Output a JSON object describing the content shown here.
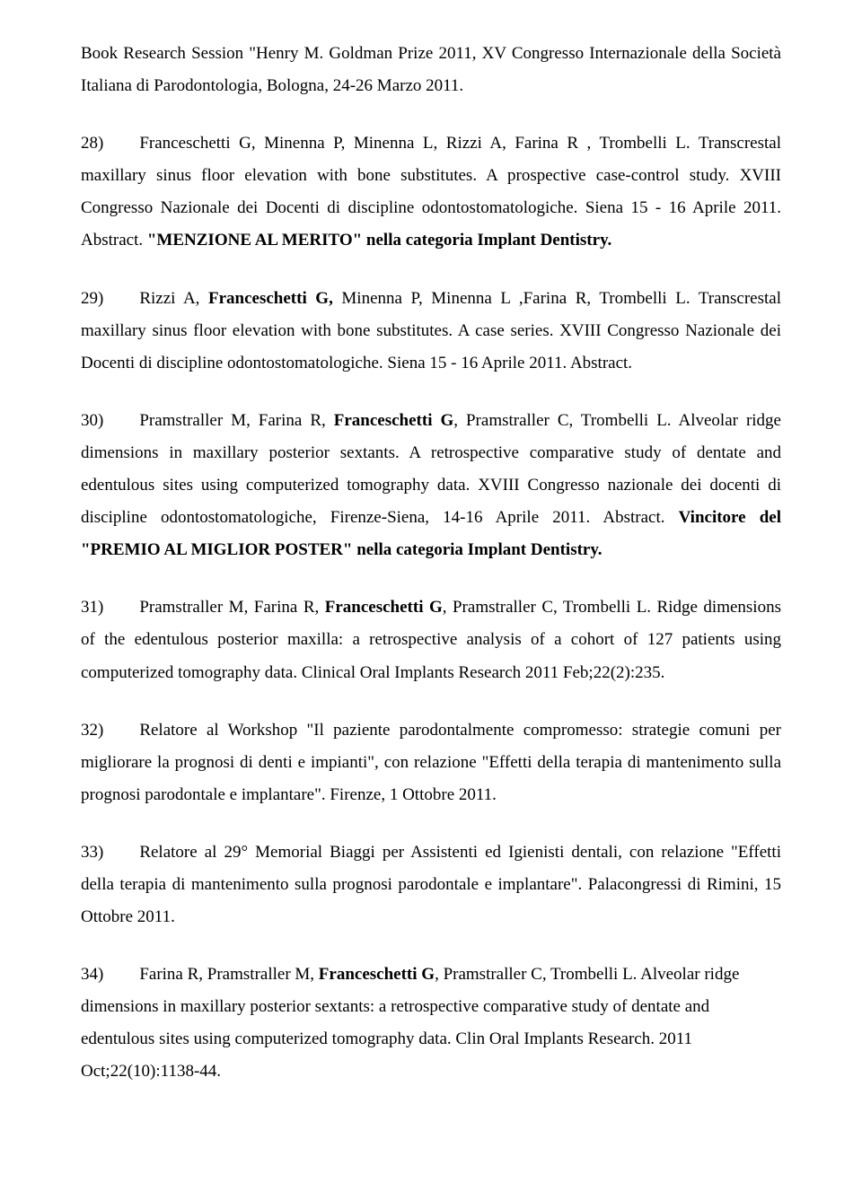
{
  "font_family": "Times New Roman",
  "font_size_pt": 14,
  "line_height": 1.9,
  "text_color": "#000000",
  "background_color": "#ffffff",
  "paragraphs": [
    {
      "id": "p0",
      "align": "justify",
      "runs": [
        {
          "text": "Book Research Session \"Henry M. Goldman Prize 2011, XV Congresso Internazionale della Società Italiana di Parodontologia, Bologna, 24-26 Marzo 2011.",
          "bold": false
        }
      ]
    },
    {
      "id": "p28",
      "align": "justify",
      "runs": [
        {
          "text": "28)",
          "bold": false
        },
        {
          "tab": true
        },
        {
          "text": "Franceschetti G, Minenna P, Minenna L, Rizzi A, Farina R , Trombelli L. Transcrestal maxillary sinus floor elevation  with bone substitutes. A prospective case-control study. XVIII Congresso Nazionale dei Docenti di discipline odontostomatologiche. Siena 15 - 16 Aprile 2011. Abstract. ",
          "bold": false
        },
        {
          "text": "\"MENZIONE AL MERITO\" nella categoria Implant Dentistry.",
          "bold": true
        }
      ]
    },
    {
      "id": "p29",
      "align": "justify",
      "runs": [
        {
          "text": "29)",
          "bold": false
        },
        {
          "tab": true
        },
        {
          "text": "Rizzi A, ",
          "bold": false
        },
        {
          "text": "Franceschetti G,",
          "bold": true
        },
        {
          "text": " Minenna P, Minenna L ,Farina R, Trombelli L. Transcrestal maxillary sinus floor elevation with bone substitutes. A case series. XVIII Congresso Nazionale dei Docenti di discipline odontostomatologiche. Siena 15 - 16 Aprile 2011. Abstract.",
          "bold": false
        }
      ]
    },
    {
      "id": "p30",
      "align": "justify",
      "runs": [
        {
          "text": "30)",
          "bold": false
        },
        {
          "tab": true
        },
        {
          "text": "Pramstraller M, Farina R, ",
          "bold": false
        },
        {
          "text": "Franceschetti G",
          "bold": true
        },
        {
          "text": ", Pramstraller C, Trombelli L. Alveolar ridge dimensions in maxillary posterior sextants. A retrospective comparative study of dentate and edentulous sites using computerized tomography data. XVIII Congresso nazionale dei docenti di discipline odontostomatologiche, Firenze-Siena, 14-16 Aprile 2011. Abstract. ",
          "bold": false
        },
        {
          "text": "Vincitore del \"PREMIO AL MIGLIOR POSTER\" nella categoria Implant Dentistry.",
          "bold": true
        }
      ]
    },
    {
      "id": "p31",
      "align": "justify",
      "runs": [
        {
          "text": "31)",
          "bold": false
        },
        {
          "tab": true
        },
        {
          "text": "Pramstraller M, Farina R, ",
          "bold": false
        },
        {
          "text": "Franceschetti G",
          "bold": true
        },
        {
          "text": ", Pramstraller C, Trombelli L. Ridge dimensions of the edentulous posterior maxilla: a retrospective analysis of a cohort of 127 patients using computerized tomography data. Clinical Oral Implants Research 2011 Feb;22(2):235.",
          "bold": false
        }
      ]
    },
    {
      "id": "p32",
      "align": "justify",
      "runs": [
        {
          "text": "32)",
          "bold": false
        },
        {
          "tab": true
        },
        {
          "text": "Relatore al Workshop \"Il paziente parodontalmente compromesso: strategie comuni per migliorare la prognosi di denti e impianti\", con relazione \"Effetti della terapia di mantenimento sulla prognosi parodontale e implantare\". Firenze, 1 Ottobre 2011.",
          "bold": false
        }
      ]
    },
    {
      "id": "p33",
      "align": "justify",
      "runs": [
        {
          "text": "33)",
          "bold": false
        },
        {
          "tab": true
        },
        {
          "text": "Relatore al 29° Memorial Biaggi per Assistenti ed Igienisti dentali, con relazione \"Effetti della terapia di mantenimento sulla prognosi parodontale e implantare\". Palacongressi di Rimini, 15 Ottobre 2011.",
          "bold": false
        }
      ]
    },
    {
      "id": "p34",
      "align": "left",
      "runs": [
        {
          "text": "34)",
          "bold": false
        },
        {
          "tab": true
        },
        {
          "text": "Farina R, Pramstraller M, ",
          "bold": false
        },
        {
          "text": "Franceschetti G",
          "bold": true
        },
        {
          "text": ", Pramstraller C, Trombelli L. Alveolar ridge dimensions in maxillary posterior sextants: a retrospective comparative study of dentate and edentulous sites using computerized tomography data. Clin Oral Implants Research. 2011 Oct;22(10):1138-44.",
          "bold": false
        }
      ]
    }
  ]
}
